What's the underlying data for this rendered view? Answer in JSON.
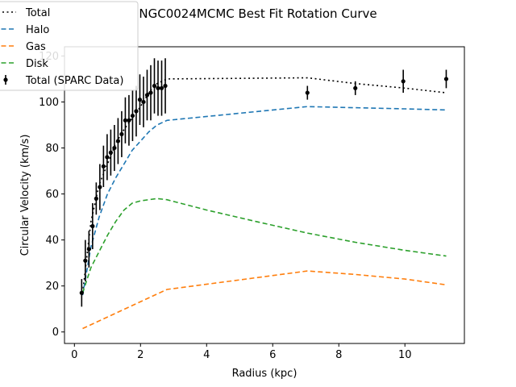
{
  "chart_data": {
    "type": "line",
    "title": "NGC0024MCMC Best Fit Rotation Curve",
    "xlabel": "Radius (kpc)",
    "ylabel": "Circular Velocity (km/s)",
    "xlim": [
      -0.3,
      11.8
    ],
    "ylim": [
      -5,
      124
    ],
    "xticks": [
      0,
      2,
      4,
      6,
      8,
      10
    ],
    "yticks": [
      0,
      20,
      40,
      60,
      80,
      100,
      120
    ],
    "grid": false,
    "legend_position": "top-left",
    "series": [
      {
        "name": "Total",
        "style": "dotted",
        "color": "#000000",
        "x": [
          0.25,
          0.5,
          0.75,
          1.0,
          1.25,
          1.5,
          1.75,
          2.0,
          2.25,
          2.5,
          2.8,
          7.05,
          8.5,
          10.0,
          11.25
        ],
        "y": [
          17,
          48,
          64,
          73,
          82,
          88,
          93,
          98,
          104,
          108,
          110,
          110.5,
          108,
          106,
          104
        ]
      },
      {
        "name": "Halo",
        "style": "dashed",
        "color": "#1f77b4",
        "x": [
          0.25,
          0.5,
          0.75,
          1.0,
          1.25,
          1.5,
          1.75,
          2.0,
          2.25,
          2.5,
          2.8,
          7.05,
          8.5,
          10.0,
          11.25
        ],
        "y": [
          16,
          37,
          50,
          60,
          67,
          73,
          79,
          83,
          87,
          90,
          92,
          98,
          97.5,
          97,
          96.5
        ]
      },
      {
        "name": "Gas",
        "style": "dashed",
        "color": "#ff7f0e",
        "x": [
          0.25,
          2.8,
          7.05,
          8.5,
          10.0,
          11.25
        ],
        "y": [
          1.5,
          18.5,
          26.5,
          25,
          23,
          20.5
        ]
      },
      {
        "name": "Disk",
        "style": "dashed",
        "color": "#2ca02c",
        "x": [
          0.25,
          0.5,
          0.75,
          1.0,
          1.25,
          1.5,
          1.75,
          2.0,
          2.25,
          2.5,
          2.8,
          4.0,
          5.5,
          7.05,
          8.5,
          10.0,
          11.25
        ],
        "y": [
          17,
          28,
          35,
          42,
          48,
          53,
          56,
          57,
          57.5,
          58,
          57.5,
          53,
          48,
          43,
          39,
          35.5,
          33
        ]
      }
    ],
    "scatter": {
      "name": "Total (SPARC Data)",
      "color": "#000000",
      "x": [
        0.22,
        0.33,
        0.44,
        0.55,
        0.66,
        0.77,
        0.88,
        0.99,
        1.1,
        1.21,
        1.32,
        1.43,
        1.54,
        1.65,
        1.76,
        1.87,
        1.98,
        2.09,
        2.2,
        2.31,
        2.42,
        2.53,
        2.64,
        2.75,
        7.05,
        8.5,
        9.95,
        11.25
      ],
      "y": [
        17,
        31,
        36,
        46,
        58,
        63,
        72,
        76,
        78,
        80,
        83,
        86,
        92,
        92,
        94,
        96,
        101,
        100,
        103,
        104,
        107,
        106,
        106,
        107,
        104,
        106,
        109,
        110
      ],
      "err": [
        6,
        9,
        8,
        10,
        7,
        10,
        9,
        10,
        10,
        10,
        10,
        10,
        10,
        11,
        11,
        11,
        11,
        11,
        11,
        12,
        12,
        12,
        12,
        12,
        3,
        3,
        5,
        4
      ]
    }
  }
}
